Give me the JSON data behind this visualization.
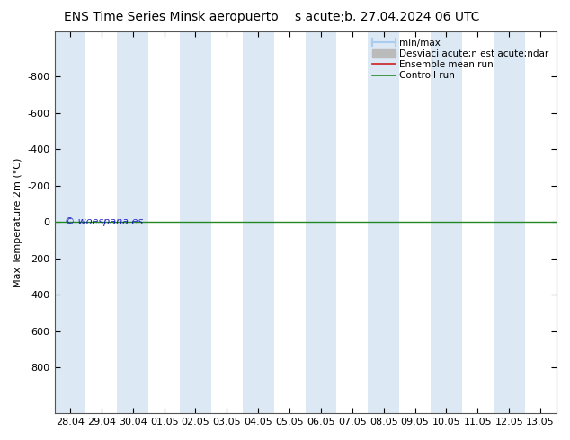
{
  "title": "ENS Time Series Minsk aeropuerto",
  "subtitle": "s acute;b. 27.04.2024 06 UTC",
  "ylabel": "Max Temperature 2m (°C)",
  "ylim": [
    -1050,
    1050
  ],
  "yticks": [
    -800,
    -600,
    -400,
    -200,
    0,
    200,
    400,
    600,
    800
  ],
  "xlabels": [
    "28.04",
    "29.04",
    "30.04",
    "01.05",
    "02.05",
    "03.05",
    "04.05",
    "05.05",
    "06.05",
    "07.05",
    "08.05",
    "09.05",
    "10.05",
    "11.05",
    "12.05",
    "13.05"
  ],
  "bg_color": "#ffffff",
  "band_color": "#dce9f5",
  "green_line_y": 0,
  "watermark": "© woespana.es",
  "legend_labels": [
    "min/max",
    "Desviaci acute;n est acute;ndar",
    "Ensemble mean run",
    "Controll run"
  ],
  "minmax_color": "#aaccee",
  "std_color": "#bbbbbb",
  "ensemble_color": "#cc2222",
  "control_color": "#228822",
  "title_fontsize": 10,
  "subtitle_fontsize": 10,
  "ylabel_fontsize": 8,
  "tick_fontsize": 8,
  "legend_fontsize": 7.5
}
